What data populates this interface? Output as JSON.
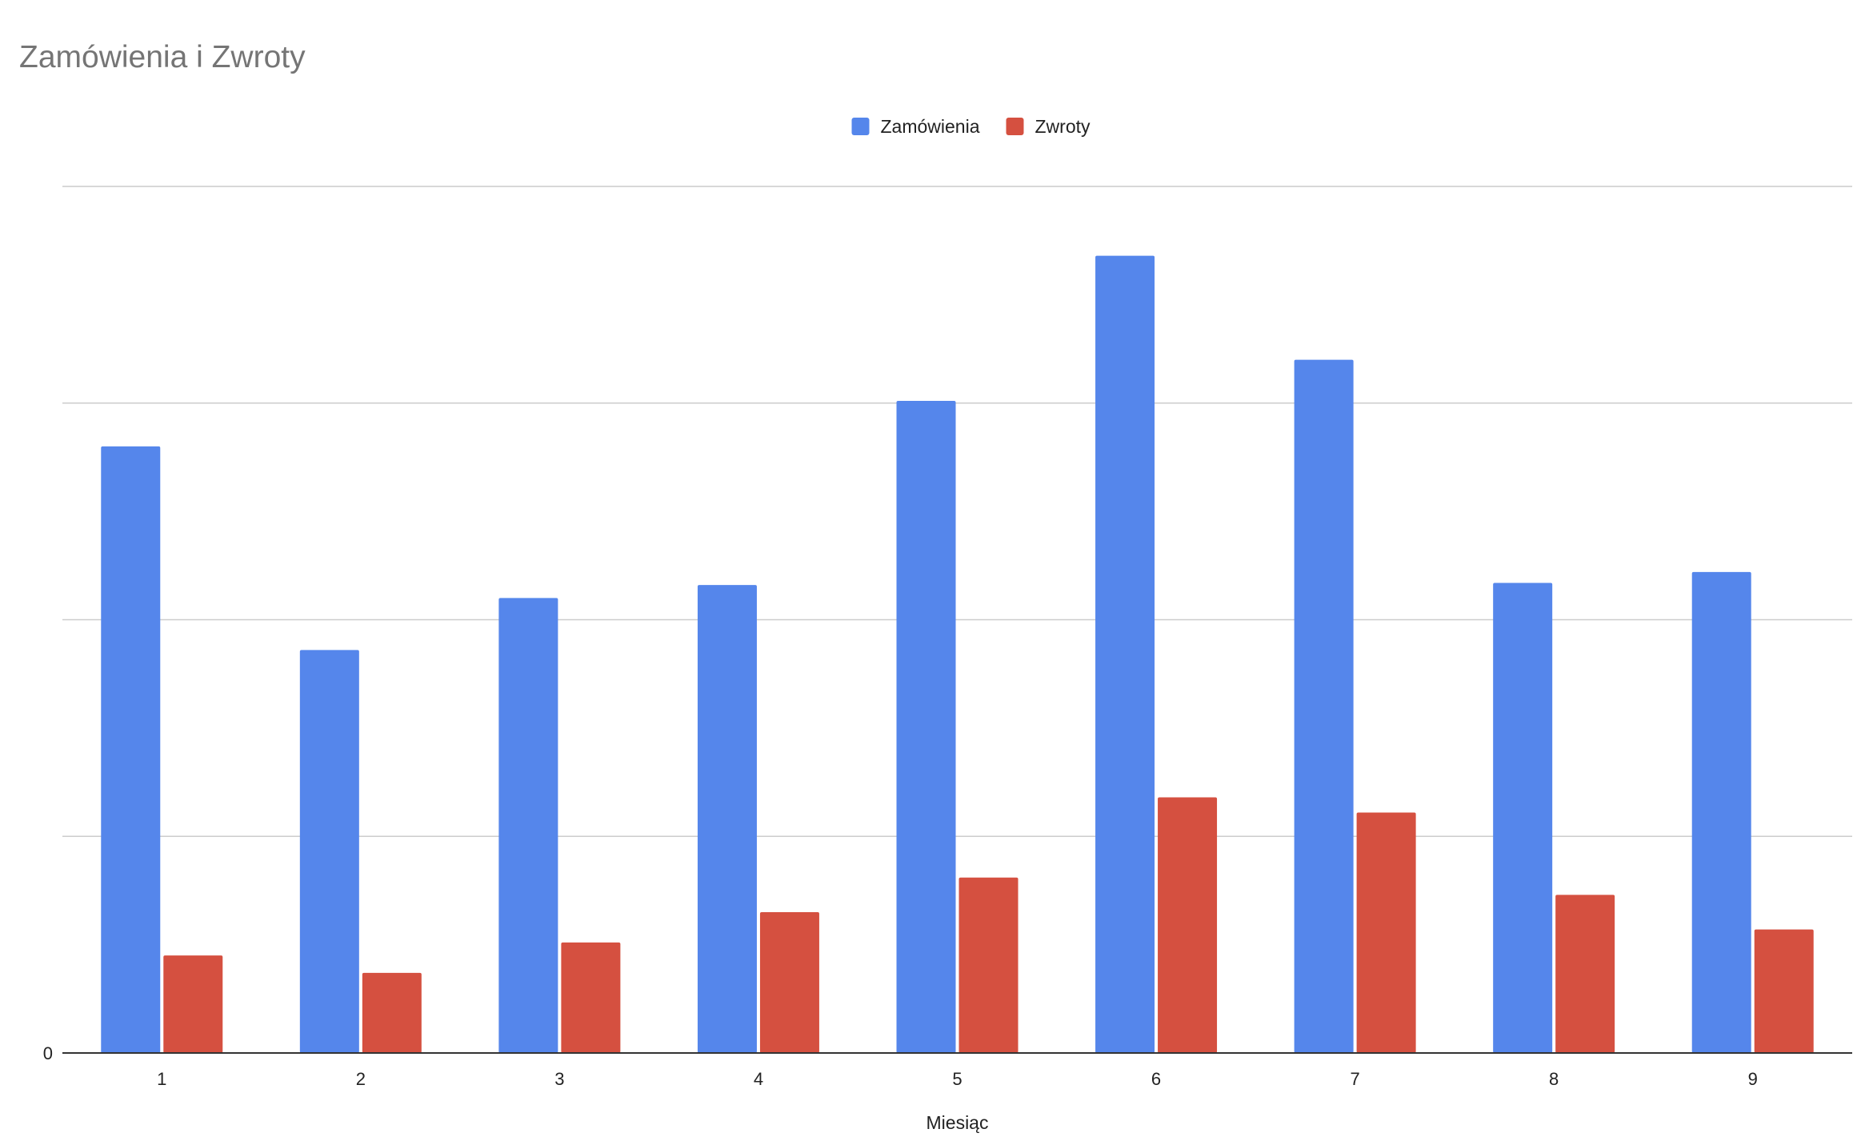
{
  "chart_data": {
    "type": "bar",
    "title": "Zamówienia i Zwroty",
    "xlabel": "Miesiąc",
    "ylabel": "",
    "categories": [
      "1",
      "2",
      "3",
      "4",
      "5",
      "6",
      "7",
      "8",
      "9"
    ],
    "series": [
      {
        "name": "Zamówienia",
        "color": "#5586eb",
        "values": [
          280,
          186,
          210,
          216,
          301,
          368,
          320,
          217,
          222
        ]
      },
      {
        "name": "Zwroty",
        "color": "#d55040",
        "values": [
          45,
          37,
          51,
          65,
          81,
          118,
          111,
          73,
          57
        ]
      }
    ],
    "ylim": [
      0,
      400
    ],
    "y_tick_labels": [
      "0"
    ],
    "grid": true,
    "legend_position": "top-center"
  }
}
